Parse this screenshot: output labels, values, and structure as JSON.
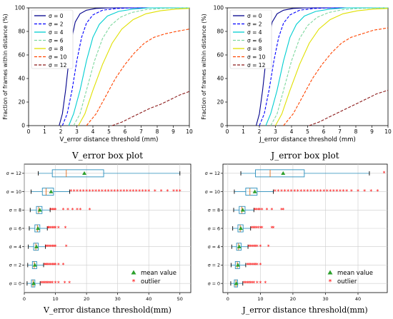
{
  "chart_data": [
    {
      "type": "line",
      "xlabel": "V_error distance threshold (mm)",
      "ylabel": "Fraction of frames within distance (%)",
      "xlim": [
        0,
        10
      ],
      "ylim": [
        0,
        100
      ],
      "x_ticks": [
        "0",
        "1",
        "2",
        "3",
        "4",
        "5",
        "6",
        "7",
        "8",
        "9",
        "10"
      ],
      "y_ticks": [
        "0",
        "20",
        "40",
        "60",
        "80",
        "100"
      ],
      "grid": false,
      "legend": "top-left",
      "series": [
        {
          "name": "σ = 0",
          "color": "#00008b",
          "dash": "solid",
          "x": [
            1.9,
            2.1,
            2.3,
            2.5,
            2.7,
            2.9,
            3.2,
            3.6,
            4.2,
            5.0,
            10
          ],
          "y": [
            0,
            10,
            30,
            55,
            75,
            88,
            95,
            98,
            99.5,
            100,
            100
          ]
        },
        {
          "name": "σ = 2",
          "color": "#0000ff",
          "dash": "dashed",
          "x": [
            2.1,
            2.4,
            2.7,
            3.0,
            3.3,
            3.6,
            4.0,
            4.6,
            5.5,
            6.5,
            10
          ],
          "y": [
            0,
            10,
            30,
            55,
            75,
            87,
            94,
            98,
            99.5,
            100,
            100
          ]
        },
        {
          "name": "σ = 4",
          "color": "#00ced1",
          "dash": "solid",
          "x": [
            2.5,
            2.8,
            3.2,
            3.6,
            4.0,
            4.4,
            4.9,
            5.6,
            6.5,
            7.5,
            10
          ],
          "y": [
            0,
            10,
            30,
            55,
            75,
            86,
            93,
            97,
            99,
            100,
            100
          ]
        },
        {
          "name": "σ = 6",
          "color": "#7fd8a0",
          "dash": "dashed",
          "x": [
            2.8,
            3.2,
            3.6,
            4.1,
            4.6,
            5.1,
            5.7,
            6.4,
            7.3,
            8.2,
            10
          ],
          "y": [
            0,
            10,
            30,
            55,
            74,
            85,
            92,
            96,
            98.5,
            99.5,
            100
          ]
        },
        {
          "name": "σ = 8",
          "color": "#e0e000",
          "dash": "solid",
          "x": [
            3.1,
            3.5,
            4.0,
            4.6,
            5.2,
            5.8,
            6.5,
            7.3,
            8.2,
            9.2,
            10
          ],
          "y": [
            0,
            10,
            30,
            52,
            70,
            82,
            90,
            95,
            97.5,
            99,
            99.5
          ]
        },
        {
          "name": "σ = 10",
          "color": "#ff4500",
          "dash": "dashed",
          "x": [
            3.6,
            4.2,
            4.8,
            5.4,
            6.0,
            6.6,
            7.2,
            7.8,
            8.5,
            9.2,
            10
          ],
          "y": [
            0,
            10,
            25,
            40,
            52,
            62,
            70,
            75,
            78,
            80,
            82
          ]
        },
        {
          "name": "σ = 12",
          "color": "#8b1a1a",
          "dash": "dashed",
          "x": [
            5.2,
            5.8,
            6.4,
            7.0,
            7.6,
            8.2,
            8.8,
            9.4,
            10
          ],
          "y": [
            0,
            3,
            7,
            11,
            15,
            18,
            22,
            26,
            29
          ]
        }
      ]
    },
    {
      "type": "line",
      "xlabel": "J_error distance threshold (mm)",
      "ylabel": "Fraction of frames within distance (%)",
      "xlim": [
        0,
        10
      ],
      "ylim": [
        0,
        100
      ],
      "x_ticks": [
        "0",
        "1",
        "2",
        "3",
        "4",
        "5",
        "6",
        "7",
        "8",
        "9",
        "10"
      ],
      "y_ticks": [
        "0",
        "20",
        "40",
        "60",
        "80",
        "100"
      ],
      "grid": false,
      "legend": "top-left",
      "series": [
        {
          "name": "σ = 0",
          "color": "#00008b",
          "dash": "solid",
          "x": [
            1.8,
            2.0,
            2.2,
            2.4,
            2.6,
            2.8,
            3.1,
            3.5,
            4.1,
            4.9,
            10
          ],
          "y": [
            0,
            10,
            30,
            55,
            75,
            88,
            95,
            98,
            99.5,
            100,
            100
          ]
        },
        {
          "name": "σ = 2",
          "color": "#0000ff",
          "dash": "dashed",
          "x": [
            2.0,
            2.3,
            2.6,
            2.9,
            3.2,
            3.5,
            3.9,
            4.5,
            5.4,
            6.4,
            10
          ],
          "y": [
            0,
            10,
            30,
            55,
            75,
            87,
            94,
            98,
            99.5,
            100,
            100
          ]
        },
        {
          "name": "σ = 4",
          "color": "#00ced1",
          "dash": "solid",
          "x": [
            2.4,
            2.7,
            3.1,
            3.5,
            3.9,
            4.3,
            4.8,
            5.5,
            6.4,
            7.4,
            10
          ],
          "y": [
            0,
            10,
            30,
            55,
            75,
            86,
            93,
            97,
            99,
            100,
            100
          ]
        },
        {
          "name": "σ = 6",
          "color": "#7fd8a0",
          "dash": "dashed",
          "x": [
            2.7,
            3.1,
            3.5,
            4.0,
            4.5,
            5.0,
            5.6,
            6.3,
            7.2,
            8.1,
            10
          ],
          "y": [
            0,
            10,
            30,
            55,
            74,
            85,
            92,
            96,
            98.5,
            99.5,
            100
          ]
        },
        {
          "name": "σ = 8",
          "color": "#e0e000",
          "dash": "solid",
          "x": [
            3.0,
            3.4,
            3.9,
            4.5,
            5.1,
            5.7,
            6.4,
            7.2,
            8.1,
            9.1,
            10
          ],
          "y": [
            0,
            10,
            30,
            52,
            70,
            82,
            90,
            95,
            97.5,
            99,
            99.5
          ]
        },
        {
          "name": "σ = 10",
          "color": "#ff4500",
          "dash": "dashed",
          "x": [
            3.5,
            4.1,
            4.7,
            5.3,
            5.9,
            6.5,
            7.1,
            7.7,
            8.4,
            9.1,
            10
          ],
          "y": [
            0,
            10,
            25,
            40,
            52,
            62,
            70,
            75,
            78,
            81,
            83
          ]
        },
        {
          "name": "σ = 12",
          "color": "#8b1a1a",
          "dash": "dashed",
          "x": [
            5.1,
            5.7,
            6.3,
            6.9,
            7.5,
            8.1,
            8.7,
            9.3,
            10
          ],
          "y": [
            0,
            3,
            7,
            11,
            15,
            19,
            23,
            27,
            30
          ]
        }
      ]
    },
    {
      "type": "box",
      "title": "V_error box plot",
      "xlabel": "V_error distance threshold(mm)",
      "xlim": [
        0,
        50
      ],
      "x_ticks": [
        "0",
        "10",
        "20",
        "30",
        "40",
        "50"
      ],
      "categories": [
        "σ = 0",
        "σ = 2",
        "σ = 4",
        "σ = 6",
        "σ = 8",
        "σ = 10",
        "σ = 12"
      ],
      "legend": "bottom-right",
      "legend_labels": {
        "mean": "mean value",
        "outlier": "outlier"
      },
      "colors": {
        "box": "#2a8fbd",
        "median": "#e05c00",
        "mean": "#2ca02c",
        "outlier": "#ff0000"
      },
      "boxes": [
        {
          "q1": 2.3,
          "median": 2.8,
          "q3": 3.4,
          "mean": 3.0,
          "whisker_low": 0.9,
          "whisker_high": 5.1,
          "outliers": [
            5.5,
            6,
            6.5,
            7,
            7.5,
            8,
            8.5,
            9,
            10,
            11,
            13,
            14.5
          ]
        },
        {
          "q1": 2.6,
          "median": 3.2,
          "q3": 4.0,
          "mean": 3.4,
          "whisker_low": 1.1,
          "whisker_high": 6.2,
          "outliers": [
            6.6,
            7,
            7.5,
            8,
            8.5,
            9,
            9.5,
            10,
            11,
            12.5
          ]
        },
        {
          "q1": 3.0,
          "median": 3.7,
          "q3": 4.5,
          "mean": 3.9,
          "whisker_low": 1.3,
          "whisker_high": 6.8,
          "outliers": [
            7,
            7.5,
            8,
            8.5,
            9,
            9.5,
            10,
            13.5
          ]
        },
        {
          "q1": 3.4,
          "median": 4.2,
          "q3": 5.0,
          "mean": 4.4,
          "whisker_low": 1.6,
          "whisker_high": 7.4,
          "outliers": [
            7.6,
            8,
            8.5,
            9,
            9.5,
            10,
            11,
            13.2
          ]
        },
        {
          "q1": 3.9,
          "median": 4.6,
          "q3": 5.7,
          "mean": 5.0,
          "whisker_low": 1.9,
          "whisker_high": 8.3,
          "outliers": [
            8.5,
            9,
            9.5,
            10,
            12.5,
            14,
            15.5,
            17,
            18,
            21
          ]
        },
        {
          "q1": 5.8,
          "median": 7.0,
          "q3": 9.4,
          "mean": 8.6,
          "whisker_low": 2.2,
          "whisker_high": 14.6,
          "outliers": [
            15,
            16,
            17,
            18,
            19,
            20,
            21,
            22,
            23,
            24,
            25,
            26,
            27,
            28,
            29,
            30,
            31,
            32,
            33,
            34,
            35,
            36,
            37,
            38,
            39,
            40,
            42,
            44,
            46,
            48,
            49,
            50
          ]
        },
        {
          "q1": 9.0,
          "median": 13.5,
          "q3": 25.5,
          "mean": 19.3,
          "whisker_low": 4.5,
          "whisker_high": 50.0,
          "outliers": []
        }
      ]
    },
    {
      "type": "box",
      "title": "J_error box plot",
      "xlabel": "J_error distance threshold(mm)",
      "xlim": [
        0,
        50
      ],
      "x_ticks": [
        "0",
        "10",
        "20",
        "30",
        "40"
      ],
      "categories": [
        "σ = 0",
        "σ = 2",
        "σ = 4",
        "σ = 6",
        "σ = 8",
        "σ = 10",
        "σ = 12"
      ],
      "legend": "bottom-right",
      "legend_labels": {
        "mean": "mean value",
        "outlier": "outlier"
      },
      "colors": {
        "box": "#2a8fbd",
        "median": "#e05c00",
        "mean": "#2ca02c",
        "outlier": "#ff0000"
      },
      "boxes": [
        {
          "q1": 2.0,
          "median": 2.5,
          "q3": 3.0,
          "mean": 2.6,
          "whisker_low": 0.9,
          "whisker_high": 4.6,
          "outliers": [
            5,
            5.5,
            6,
            6.5,
            7,
            7.5,
            8,
            9,
            10,
            11.5
          ]
        },
        {
          "q1": 2.3,
          "median": 2.9,
          "q3": 3.6,
          "mean": 3.1,
          "whisker_low": 1.0,
          "whisker_high": 5.5,
          "outliers": [
            6,
            6.5,
            7,
            7.5,
            8,
            8.5,
            9,
            10
          ]
        },
        {
          "q1": 2.7,
          "median": 3.3,
          "q3": 4.1,
          "mean": 3.5,
          "whisker_low": 1.2,
          "whisker_high": 6.2,
          "outliers": [
            6.5,
            7,
            7.5,
            8,
            8.5,
            9,
            10,
            12.5
          ]
        },
        {
          "q1": 3.1,
          "median": 3.8,
          "q3": 4.7,
          "mean": 4.0,
          "whisker_low": 1.5,
          "whisker_high": 7.0,
          "outliers": [
            7.3,
            7.8,
            8.3,
            8.8,
            9.3,
            10,
            10.5,
            13.5,
            14
          ]
        },
        {
          "q1": 3.5,
          "median": 4.3,
          "q3": 5.3,
          "mean": 4.6,
          "whisker_low": 1.8,
          "whisker_high": 8.0,
          "outliers": [
            8.3,
            8.8,
            9.3,
            9.8,
            10.5,
            12,
            13.5,
            16.5,
            17
          ]
        },
        {
          "q1": 5.5,
          "median": 6.8,
          "q3": 9.0,
          "mean": 8.3,
          "whisker_low": 2.0,
          "whisker_high": 14.0,
          "outliers": [
            14.5,
            15.5,
            16.5,
            17.5,
            18.5,
            19.5,
            20.5,
            21.5,
            22.5,
            23.5,
            24.5,
            25.5,
            26.5,
            27.5,
            28.5,
            29.5,
            30.5,
            31.5,
            32.5,
            33.5,
            34.5,
            35.5,
            36.5,
            38,
            40,
            42,
            44,
            46
          ]
        },
        {
          "q1": 8.5,
          "median": 13.0,
          "q3": 23.5,
          "mean": 17.0,
          "whisker_low": 4.0,
          "whisker_high": 43.5,
          "outliers": [
            48
          ]
        }
      ]
    }
  ]
}
